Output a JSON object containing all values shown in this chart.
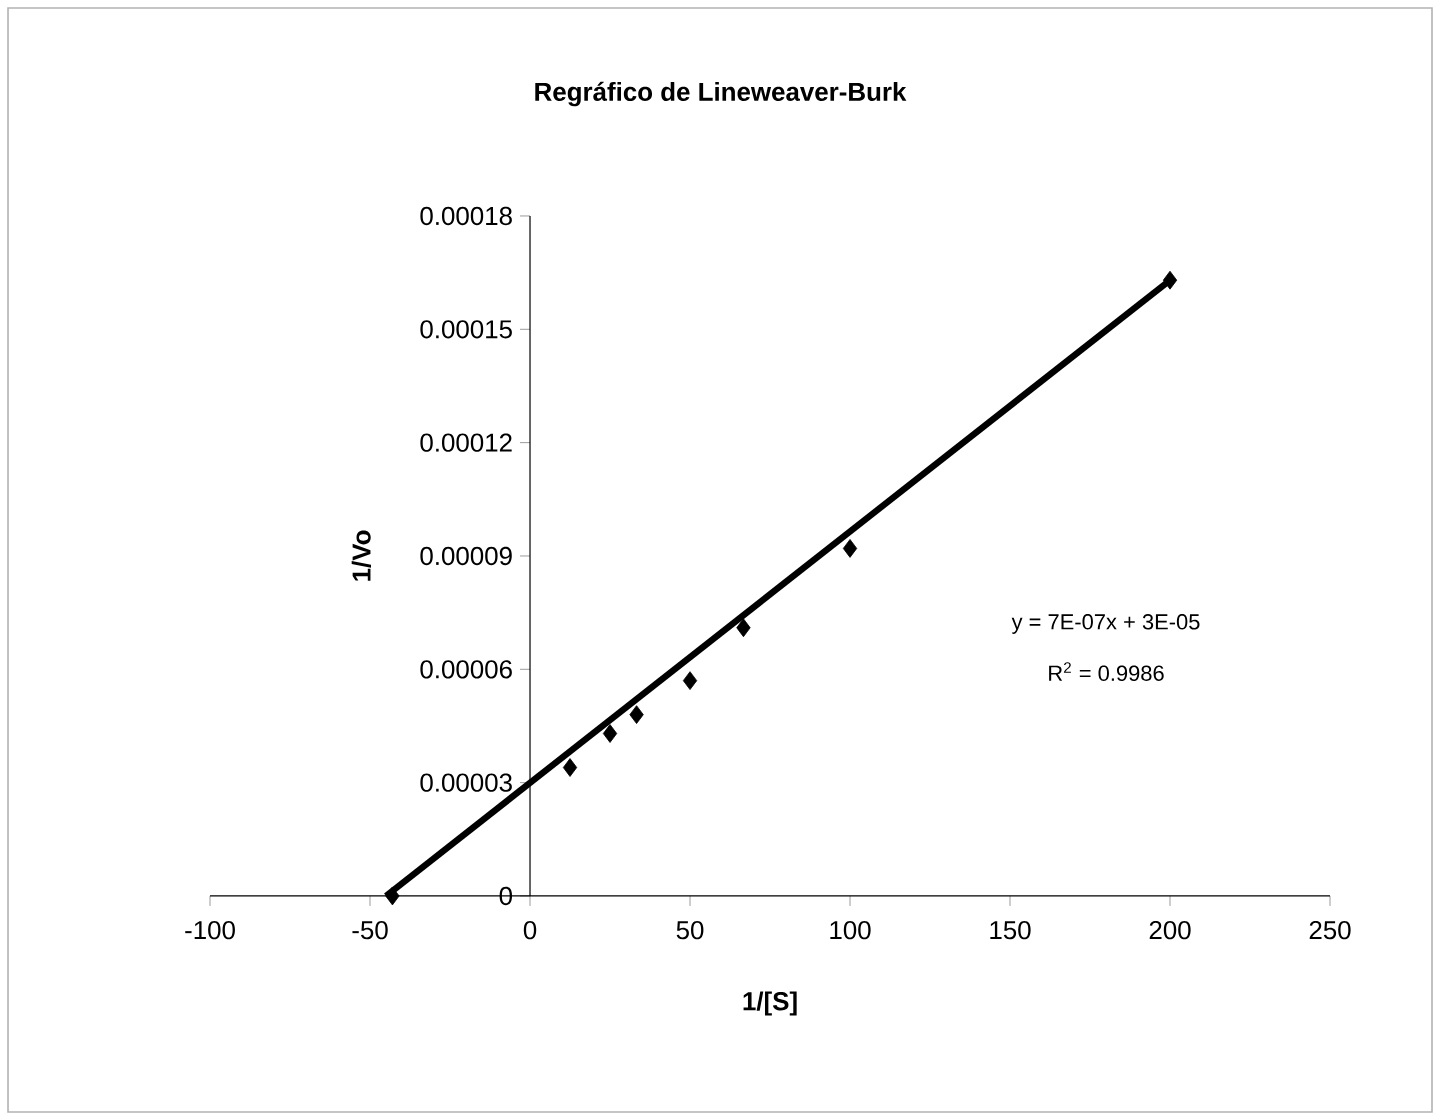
{
  "chart_data": {
    "type": "scatter",
    "title": "Regráfico de Lineweaver-Burk",
    "xlabel": "1/[S]",
    "ylabel": "1/Vo",
    "xlim": [
      -100,
      250
    ],
    "xticks": [
      -100,
      -50,
      0,
      50,
      100,
      150,
      200,
      250
    ],
    "ylim": [
      0,
      0.00018
    ],
    "yticks": [
      0,
      {
        "value": 3e-05,
        "label": "0.00003"
      },
      {
        "value": 6e-05,
        "label": "0.00006"
      },
      {
        "value": 9e-05,
        "label": "0.00009"
      },
      {
        "value": 0.00012,
        "label": "0.00012"
      },
      {
        "value": 0.00015,
        "label": "0.00015"
      },
      {
        "value": 0.00018,
        "label": "0.00018"
      }
    ],
    "series": [
      {
        "color": "#000000",
        "x": [
          -43,
          12.5,
          25,
          33.3,
          50,
          66.7,
          100,
          200
        ],
        "values": [
          0,
          3.4e-05,
          4.3e-05,
          4.8e-05,
          5.7e-05,
          7.1e-05,
          9.2e-05,
          0.000163
        ]
      },
      {
        "type": "line",
        "color": "#000000",
        "marker": "none",
        "line_style": "solid",
        "x": [
          -45,
          200
        ],
        "values": [
          0,
          0.000163
        ]
      }
    ],
    "annotations": [
      "y = 7E-07x + 3E-05",
      "R$^{2}$ = 0.9986"
    ],
    "marker": "diamond"
  }
}
